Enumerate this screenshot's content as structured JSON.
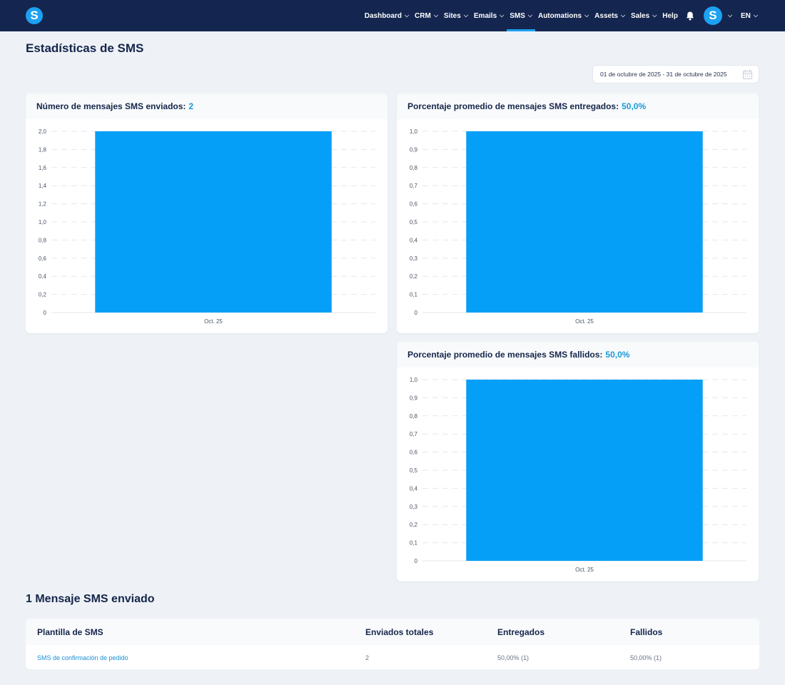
{
  "nav": {
    "logo_letter": "S",
    "items": [
      {
        "label": "Dashboard",
        "dropdown": true,
        "active": false
      },
      {
        "label": "CRM",
        "dropdown": true,
        "active": false
      },
      {
        "label": "Sites",
        "dropdown": true,
        "active": false
      },
      {
        "label": "Emails",
        "dropdown": true,
        "active": false
      },
      {
        "label": "SMS",
        "dropdown": true,
        "active": true
      },
      {
        "label": "Automations",
        "dropdown": true,
        "active": false
      },
      {
        "label": "Assets",
        "dropdown": true,
        "active": false
      },
      {
        "label": "Sales",
        "dropdown": true,
        "active": false
      },
      {
        "label": "Help",
        "dropdown": false,
        "active": false
      }
    ],
    "avatar_letter": "S",
    "language": "EN",
    "accent_color": "#1da1f2",
    "bg_color": "#14264f"
  },
  "page": {
    "title": "Estadísticas de SMS",
    "date_range": "01 de octubre de 2025 - 31 de octubre de 2025"
  },
  "cards": {
    "sent": {
      "label": "Número de mensajes SMS enviados:",
      "value": "2"
    },
    "delivered": {
      "label": "Porcentaje promedio de mensajes SMS entregados:",
      "value": "50,0%"
    },
    "failed": {
      "label": "Porcentaje promedio de mensajes SMS fallidos:",
      "value": "50,0%"
    }
  },
  "chart_data": [
    {
      "type": "bar",
      "categories": [
        "Oct. 25"
      ],
      "values": [
        2.0
      ],
      "ylim": [
        0,
        2.0
      ],
      "yticks": [
        "0",
        "0,2",
        "0,4",
        "0,6",
        "0,8",
        "1,0",
        "1,2",
        "1,4",
        "1,6",
        "1,8",
        "2,0"
      ],
      "color": "#069ff7",
      "grid": true
    },
    {
      "type": "bar",
      "categories": [
        "Oct. 25"
      ],
      "values": [
        1.0
      ],
      "ylim": [
        0,
        1.0
      ],
      "yticks": [
        "0",
        "0,1",
        "0,2",
        "0,3",
        "0,4",
        "0,5",
        "0,6",
        "0,7",
        "0,8",
        "0,9",
        "1,0"
      ],
      "color": "#069ff7",
      "grid": true
    },
    {
      "type": "bar",
      "categories": [
        "Oct. 25"
      ],
      "values": [
        1.0
      ],
      "ylim": [
        0,
        1.0
      ],
      "yticks": [
        "0",
        "0,1",
        "0,2",
        "0,3",
        "0,4",
        "0,5",
        "0,6",
        "0,7",
        "0,8",
        "0,9",
        "1,0"
      ],
      "color": "#069ff7",
      "grid": true
    }
  ],
  "messages": {
    "title": "1 Mensaje SMS enviado",
    "columns": [
      "Plantilla de SMS",
      "Enviados totales",
      "Entregados",
      "Fallidos"
    ],
    "rows": [
      {
        "template": "SMS de confirmación de pedido",
        "total": "2",
        "delivered": "50,00% (1)",
        "failed": "50,00% (1)"
      }
    ]
  }
}
